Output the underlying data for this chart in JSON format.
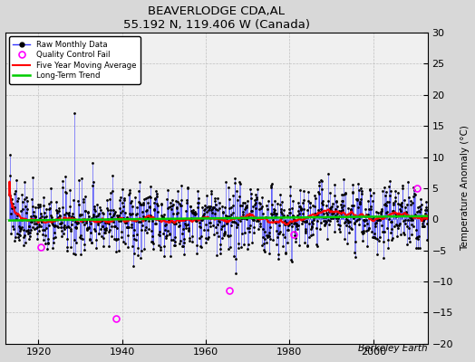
{
  "title": "BEAVERLODGE CDA,AL",
  "subtitle": "55.192 N, 119.406 W (Canada)",
  "ylabel": "Temperature Anomaly (°C)",
  "credit": "Berkeley Earth",
  "xlim": [
    1912,
    2013
  ],
  "ylim": [
    -20,
    30
  ],
  "yticks_right": [
    -20,
    -15,
    -10,
    -5,
    0,
    5,
    10,
    15,
    20,
    25,
    30
  ],
  "xticks": [
    1920,
    1940,
    1960,
    1980,
    2000
  ],
  "start_year": 1913,
  "end_year": 2013,
  "seed": 137,
  "raw_color": "#3333ff",
  "mavg_color": "#ff0000",
  "trend_color": "#00cc00",
  "qc_color": "#ff00ff",
  "background_color": "#d8d8d8",
  "plot_bg_color": "#f0f0f0",
  "grid_color": "#bbbbbb",
  "noise_std": 3.8,
  "qc_positions": [
    [
      1920.5,
      -4.5
    ],
    [
      1938.5,
      -16.0
    ],
    [
      1965.5,
      -11.5
    ],
    [
      1981.0,
      -2.5
    ],
    [
      2010.5,
      5.0
    ]
  ]
}
